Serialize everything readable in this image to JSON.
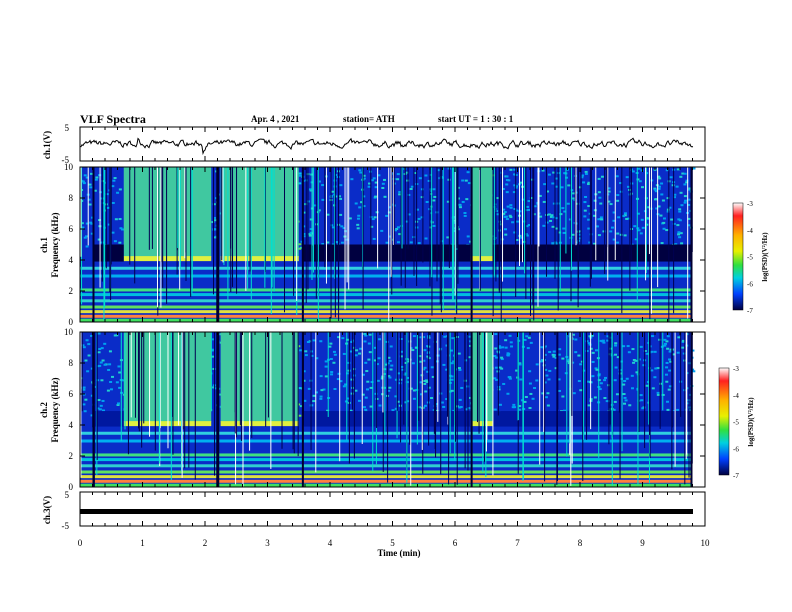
{
  "header": {
    "title": "VLF Spectra",
    "date": "Apr. 4 , 2021",
    "station": "station= ATH",
    "start": "start UT =  1 : 30 : 1"
  },
  "chart_data": [
    {
      "type": "line",
      "panel": "ch1-waveform",
      "ylabel": "ch.1(V)",
      "ylim": [
        -5,
        5
      ],
      "yticks": [
        "5",
        "-5"
      ],
      "xlim": [
        0,
        10
      ],
      "description_level": 0
    },
    {
      "type": "heatmap",
      "panel": "ch1-spectrogram",
      "ylabel": "ch.1\nFrequency (kHz)",
      "ylabel_lines": [
        "ch.1",
        "Frequency (kHz)"
      ],
      "ylim": [
        0,
        10
      ],
      "yticks": [
        "0",
        "2",
        "4",
        "6",
        "8",
        "10"
      ],
      "xlim": [
        0,
        10
      ],
      "colorbar": {
        "label": "log(PSD)(V²/Hz)",
        "range": [
          -7,
          -3
        ],
        "ticks": [
          "-3",
          "-4",
          "-5",
          "-6",
          "-7"
        ]
      }
    },
    {
      "type": "heatmap",
      "panel": "ch2-spectrogram",
      "ylabel": "ch.2\nFrequency (kHz)",
      "ylabel_lines": [
        "ch.2",
        "Frequency (kHz)"
      ],
      "ylim": [
        0,
        10
      ],
      "yticks": [
        "0",
        "2",
        "4",
        "6",
        "8",
        "10"
      ],
      "xlim": [
        0,
        10
      ],
      "colorbar": {
        "label": "log(PSD)(V²/Hz)",
        "range": [
          -7,
          -3
        ],
        "ticks": [
          "-3",
          "-4",
          "-5",
          "-6",
          "-7"
        ]
      }
    },
    {
      "type": "line",
      "panel": "ch3-waveform",
      "ylabel": "ch.3(V)",
      "ylim": [
        -5,
        5
      ],
      "yticks": [
        "5",
        "-5"
      ],
      "xlim": [
        0,
        10
      ],
      "series": [
        {
          "level": 0
        }
      ]
    }
  ],
  "xaxis": {
    "label": "Time (min)",
    "ticks": [
      "0",
      "1",
      "2",
      "3",
      "4",
      "5",
      "6",
      "7",
      "8",
      "9",
      "10"
    ],
    "range": [
      0,
      10
    ]
  },
  "colors": {
    "dark": "#000033",
    "blue": "#0040ff",
    "cyan": "#00d0ff",
    "green": "#40e070",
    "yellow": "#f0f000",
    "red": "#e00000"
  }
}
